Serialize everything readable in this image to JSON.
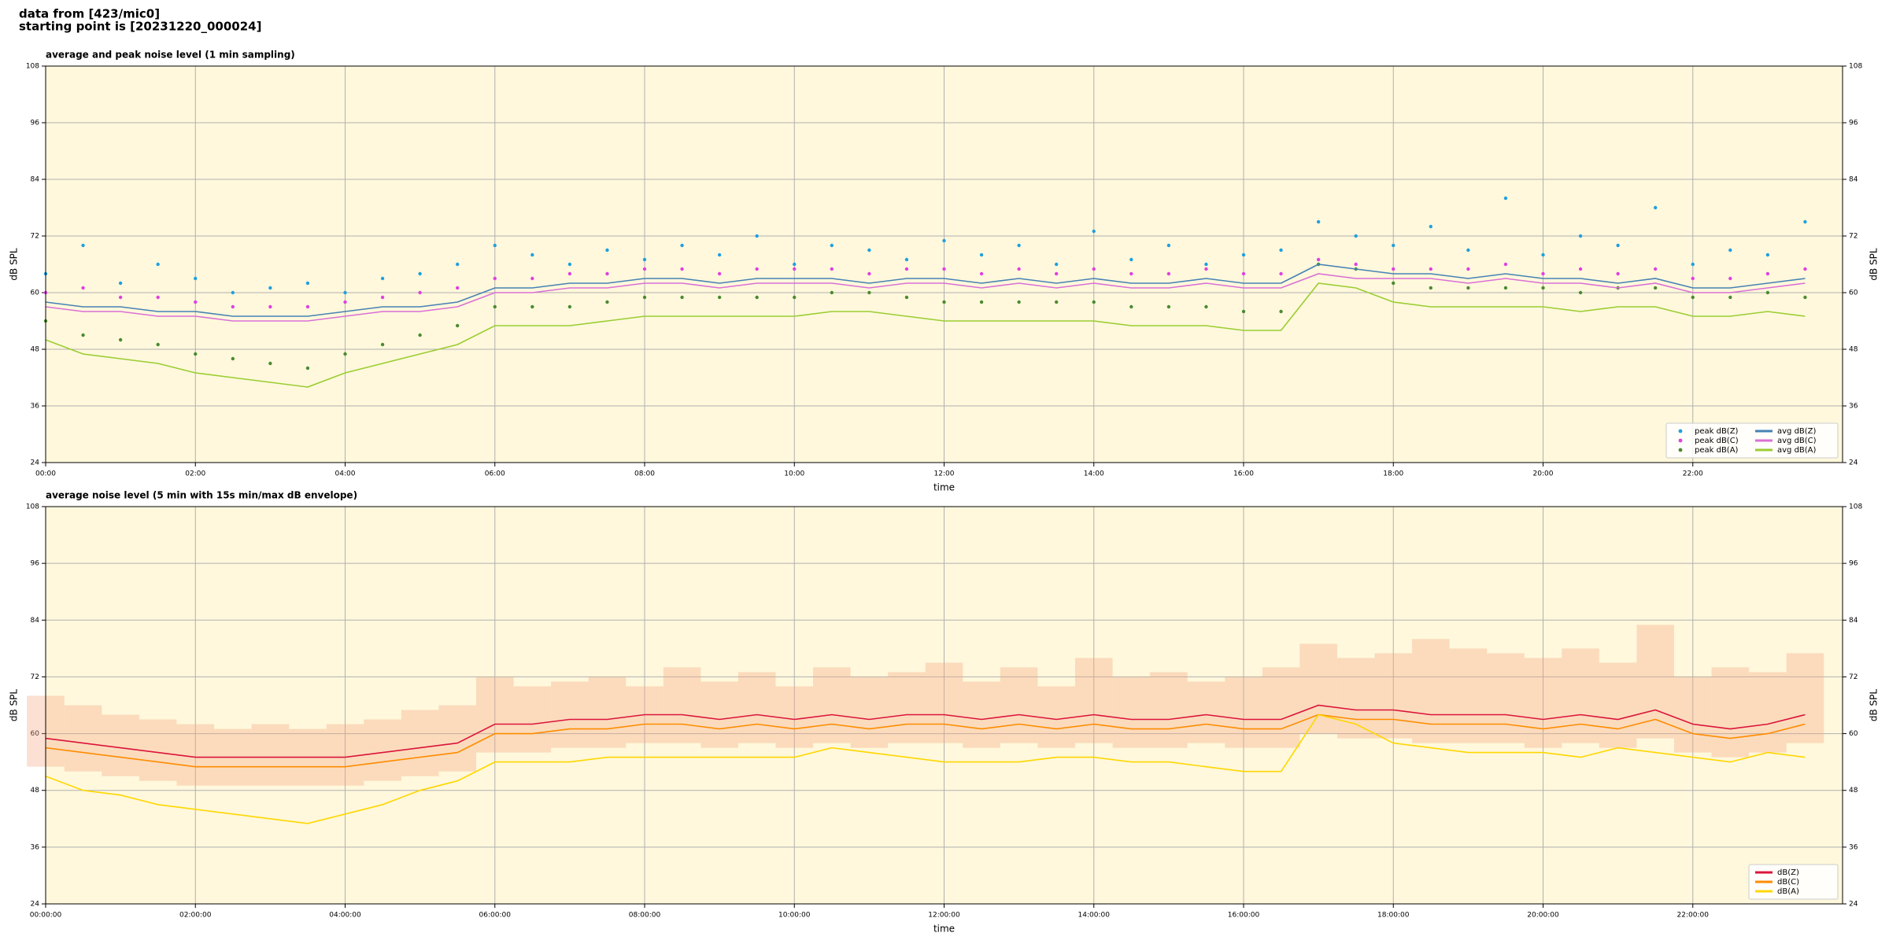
{
  "header": {
    "source": "data from [423/mic0]",
    "start": "starting point is [20231220_000024]"
  },
  "chart_data": [
    {
      "type": "line",
      "title": "average and peak noise level (1 min sampling)",
      "xlabel": "time",
      "ylabel": "dB SPL",
      "x": [
        "00:00",
        "00:30",
        "01:00",
        "01:30",
        "02:00",
        "02:30",
        "03:00",
        "03:30",
        "04:00",
        "04:30",
        "05:00",
        "05:30",
        "06:00",
        "06:30",
        "07:00",
        "07:30",
        "08:00",
        "08:30",
        "09:00",
        "09:30",
        "10:00",
        "10:30",
        "11:00",
        "11:30",
        "12:00",
        "12:30",
        "13:00",
        "13:30",
        "14:00",
        "14:30",
        "15:00",
        "15:30",
        "16:00",
        "16:30",
        "17:00",
        "17:30",
        "18:00",
        "18:30",
        "19:00",
        "19:30",
        "20:00",
        "20:30",
        "21:00",
        "21:30",
        "22:00",
        "22:30",
        "23:00",
        "23:30"
      ],
      "xlim": [
        "00:00",
        "24:00"
      ],
      "xticks": [
        "00:00",
        "02:00",
        "04:00",
        "06:00",
        "08:00",
        "10:00",
        "12:00",
        "14:00",
        "16:00",
        "18:00",
        "20:00",
        "22:00"
      ],
      "ylim": [
        24,
        108
      ],
      "yticks": [
        24,
        36,
        48,
        60,
        72,
        84,
        96,
        108
      ],
      "grid": true,
      "background": "#fff8dc",
      "legend": "lower right",
      "legend_columns": 2,
      "series": [
        {
          "name": "peak dB(Z)",
          "marker": "dot",
          "color": "#1f9fe0",
          "values": [
            64,
            70,
            62,
            66,
            63,
            60,
            61,
            62,
            60,
            63,
            64,
            66,
            70,
            68,
            66,
            69,
            67,
            70,
            68,
            72,
            66,
            70,
            69,
            67,
            71,
            68,
            70,
            66,
            73,
            67,
            70,
            66,
            68,
            69,
            75,
            72,
            70,
            74,
            69,
            80,
            68,
            72,
            70,
            78,
            66,
            69,
            68,
            75
          ]
        },
        {
          "name": "peak dB(C)",
          "marker": "dot",
          "color": "#e040e0",
          "values": [
            60,
            61,
            59,
            59,
            58,
            57,
            57,
            57,
            58,
            59,
            60,
            61,
            63,
            63,
            64,
            64,
            65,
            65,
            64,
            65,
            65,
            65,
            64,
            65,
            65,
            64,
            65,
            64,
            65,
            64,
            64,
            65,
            64,
            64,
            67,
            66,
            65,
            65,
            65,
            66,
            64,
            65,
            64,
            65,
            63,
            63,
            64,
            65
          ]
        },
        {
          "name": "peak dB(A)",
          "marker": "dot",
          "color": "#4a8a30",
          "values": [
            54,
            51,
            50,
            49,
            47,
            46,
            45,
            44,
            47,
            49,
            51,
            53,
            57,
            57,
            57,
            58,
            59,
            59,
            59,
            59,
            59,
            60,
            60,
            59,
            58,
            58,
            58,
            58,
            58,
            57,
            57,
            57,
            56,
            56,
            66,
            65,
            62,
            61,
            61,
            61,
            61,
            60,
            61,
            61,
            59,
            59,
            60,
            59
          ]
        },
        {
          "name": "avg dB(Z)",
          "marker": "line",
          "color": "#4682b4",
          "values": [
            58,
            57,
            57,
            56,
            56,
            55,
            55,
            55,
            56,
            57,
            57,
            58,
            61,
            61,
            62,
            62,
            63,
            63,
            62,
            63,
            63,
            63,
            62,
            63,
            63,
            62,
            63,
            62,
            63,
            62,
            62,
            63,
            62,
            62,
            66,
            65,
            64,
            64,
            63,
            64,
            63,
            63,
            62,
            63,
            61,
            61,
            62,
            63
          ]
        },
        {
          "name": "avg dB(C)",
          "marker": "line",
          "color": "#da70d6",
          "values": [
            57,
            56,
            56,
            55,
            55,
            54,
            54,
            54,
            55,
            56,
            56,
            57,
            60,
            60,
            61,
            61,
            62,
            62,
            61,
            62,
            62,
            62,
            61,
            62,
            62,
            61,
            62,
            61,
            62,
            61,
            61,
            62,
            61,
            61,
            64,
            63,
            63,
            63,
            62,
            63,
            62,
            62,
            61,
            62,
            60,
            60,
            61,
            62
          ]
        },
        {
          "name": "avg dB(A)",
          "marker": "line",
          "color": "#9acd32",
          "values": [
            50,
            47,
            46,
            45,
            43,
            42,
            41,
            40,
            43,
            45,
            47,
            49,
            53,
            53,
            53,
            54,
            55,
            55,
            55,
            55,
            55,
            56,
            56,
            55,
            54,
            54,
            54,
            54,
            54,
            53,
            53,
            53,
            52,
            52,
            62,
            61,
            58,
            57,
            57,
            57,
            57,
            56,
            57,
            57,
            55,
            55,
            56,
            55
          ]
        }
      ]
    },
    {
      "type": "line",
      "title": "average noise level (5 min with 15s min/max dB envelope)",
      "xlabel": "time",
      "ylabel": "dB SPL",
      "x": [
        "00:00:00",
        "00:30:00",
        "01:00:00",
        "01:30:00",
        "02:00:00",
        "02:30:00",
        "03:00:00",
        "03:30:00",
        "04:00:00",
        "04:30:00",
        "05:00:00",
        "05:30:00",
        "06:00:00",
        "06:30:00",
        "07:00:00",
        "07:30:00",
        "08:00:00",
        "08:30:00",
        "09:00:00",
        "09:30:00",
        "10:00:00",
        "10:30:00",
        "11:00:00",
        "11:30:00",
        "12:00:00",
        "12:30:00",
        "13:00:00",
        "13:30:00",
        "14:00:00",
        "14:30:00",
        "15:00:00",
        "15:30:00",
        "16:00:00",
        "16:30:00",
        "17:00:00",
        "17:30:00",
        "18:00:00",
        "18:30:00",
        "19:00:00",
        "19:30:00",
        "20:00:00",
        "20:30:00",
        "21:00:00",
        "21:30:00",
        "22:00:00",
        "22:30:00",
        "23:00:00",
        "23:30:00"
      ],
      "xlim": [
        "00:00:00",
        "24:00:00"
      ],
      "xticks": [
        "00:00:00",
        "02:00:00",
        "04:00:00",
        "06:00:00",
        "08:00:00",
        "10:00:00",
        "12:00:00",
        "14:00:00",
        "16:00:00",
        "18:00:00",
        "20:00:00",
        "22:00:00"
      ],
      "ylim": [
        24,
        108
      ],
      "yticks": [
        24,
        36,
        48,
        60,
        72,
        84,
        96,
        108
      ],
      "grid": true,
      "background": "#fff8dc",
      "legend": "lower right",
      "legend_columns": 1,
      "envelope": {
        "color": "#f4a582",
        "low": [
          53,
          52,
          51,
          50,
          49,
          49,
          49,
          49,
          49,
          50,
          51,
          52,
          56,
          56,
          57,
          57,
          58,
          58,
          57,
          58,
          57,
          58,
          57,
          58,
          58,
          57,
          58,
          57,
          58,
          57,
          57,
          58,
          57,
          57,
          60,
          59,
          59,
          58,
          58,
          58,
          57,
          58,
          57,
          59,
          56,
          55,
          56,
          58
        ],
        "high": [
          68,
          66,
          64,
          63,
          62,
          61,
          62,
          61,
          62,
          63,
          65,
          66,
          72,
          70,
          71,
          72,
          70,
          74,
          71,
          73,
          70,
          74,
          72,
          73,
          75,
          71,
          74,
          70,
          76,
          72,
          73,
          71,
          72,
          74,
          79,
          76,
          77,
          80,
          78,
          77,
          76,
          78,
          75,
          83,
          72,
          74,
          73,
          77
        ]
      },
      "series": [
        {
          "name": "dB(Z)",
          "marker": "line",
          "color": "#dc143c",
          "values": [
            59,
            58,
            57,
            56,
            55,
            55,
            55,
            55,
            55,
            56,
            57,
            58,
            62,
            62,
            63,
            63,
            64,
            64,
            63,
            64,
            63,
            64,
            63,
            64,
            64,
            63,
            64,
            63,
            64,
            63,
            63,
            64,
            63,
            63,
            66,
            65,
            65,
            64,
            64,
            64,
            63,
            64,
            63,
            65,
            62,
            61,
            62,
            64
          ]
        },
        {
          "name": "dB(C)",
          "marker": "line",
          "color": "#ff8c00",
          "values": [
            57,
            56,
            55,
            54,
            53,
            53,
            53,
            53,
            53,
            54,
            55,
            56,
            60,
            60,
            61,
            61,
            62,
            62,
            61,
            62,
            61,
            62,
            61,
            62,
            62,
            61,
            62,
            61,
            62,
            61,
            61,
            62,
            61,
            61,
            64,
            63,
            63,
            62,
            62,
            62,
            61,
            62,
            61,
            63,
            60,
            59,
            60,
            62
          ]
        },
        {
          "name": "dB(A)",
          "marker": "line",
          "color": "#ffd700",
          "values": [
            51,
            48,
            47,
            45,
            44,
            43,
            42,
            41,
            43,
            45,
            48,
            50,
            54,
            54,
            54,
            55,
            55,
            55,
            55,
            55,
            55,
            57,
            56,
            55,
            54,
            54,
            54,
            55,
            55,
            54,
            54,
            53,
            52,
            52,
            64,
            62,
            58,
            57,
            56,
            56,
            56,
            55,
            57,
            56,
            55,
            54,
            56,
            55
          ]
        }
      ]
    }
  ]
}
